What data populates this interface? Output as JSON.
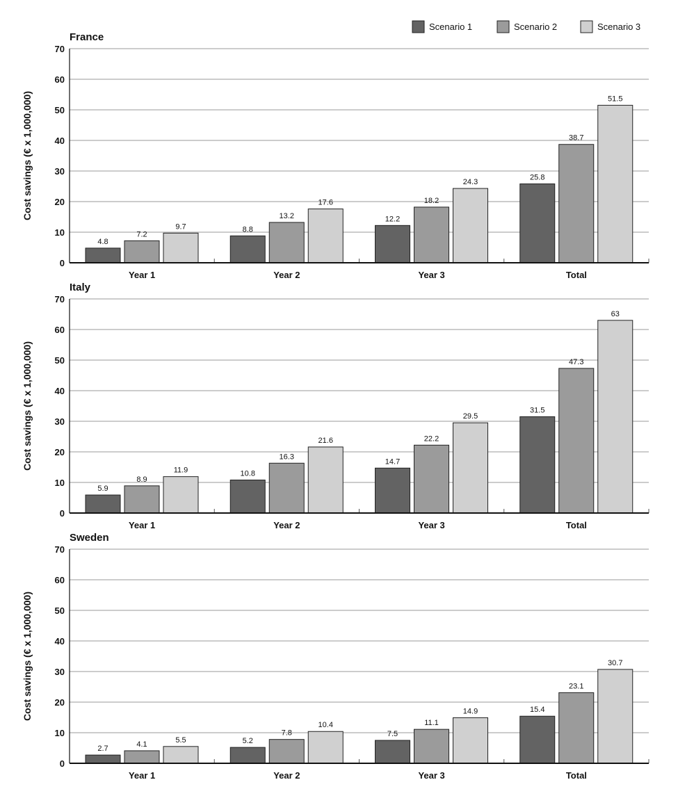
{
  "colors": {
    "Scenario 1": "#636363",
    "Scenario 2": "#9b9b9b",
    "Scenario 3": "#d0d0d0",
    "bar_stroke": "#222222",
    "grid": "#9a9a9a"
  },
  "legend": {
    "placement": "top-right",
    "items": [
      "Scenario 1",
      "Scenario 2",
      "Scenario 3"
    ]
  },
  "chart_data": [
    {
      "type": "bar",
      "title": "France",
      "ylabel": "Cost savings (€ x 1,000,000)",
      "ylim": [
        0,
        70
      ],
      "yticks": [
        0,
        10,
        20,
        30,
        40,
        50,
        60,
        70
      ],
      "grid": true,
      "categories": [
        "Year 1",
        "Year 2",
        "Year 3",
        "Total"
      ],
      "series": [
        {
          "name": "Scenario 1",
          "values": [
            4.8,
            8.8,
            12.2,
            25.8
          ]
        },
        {
          "name": "Scenario 2",
          "values": [
            7.2,
            13.2,
            18.2,
            38.7
          ]
        },
        {
          "name": "Scenario 3",
          "values": [
            9.7,
            17.6,
            24.3,
            51.5
          ]
        }
      ]
    },
    {
      "type": "bar",
      "title": "Italy",
      "ylabel": "Cost savings (€ x 1,000,000)",
      "ylim": [
        0,
        70
      ],
      "yticks": [
        0,
        10,
        20,
        30,
        40,
        50,
        60,
        70
      ],
      "grid": true,
      "categories": [
        "Year 1",
        "Year 2",
        "Year 3",
        "Total"
      ],
      "series": [
        {
          "name": "Scenario 1",
          "values": [
            5.9,
            10.8,
            14.7,
            31.5
          ]
        },
        {
          "name": "Scenario 2",
          "values": [
            8.9,
            16.3,
            22.2,
            47.3
          ]
        },
        {
          "name": "Scenario 3",
          "values": [
            11.9,
            21.6,
            29.5,
            63
          ]
        }
      ]
    },
    {
      "type": "bar",
      "title": "Sweden",
      "ylabel": "Cost savings (€ x 1,000,000)",
      "ylim": [
        0,
        70
      ],
      "yticks": [
        0,
        10,
        20,
        30,
        40,
        50,
        60,
        70
      ],
      "grid": true,
      "categories": [
        "Year 1",
        "Year 2",
        "Year 3",
        "Total"
      ],
      "series": [
        {
          "name": "Scenario 1",
          "values": [
            2.7,
            5.2,
            7.5,
            15.4
          ]
        },
        {
          "name": "Scenario 2",
          "values": [
            4.1,
            7.8,
            11.1,
            23.1
          ]
        },
        {
          "name": "Scenario 3",
          "values": [
            5.5,
            10.4,
            14.9,
            30.7
          ]
        }
      ]
    }
  ]
}
